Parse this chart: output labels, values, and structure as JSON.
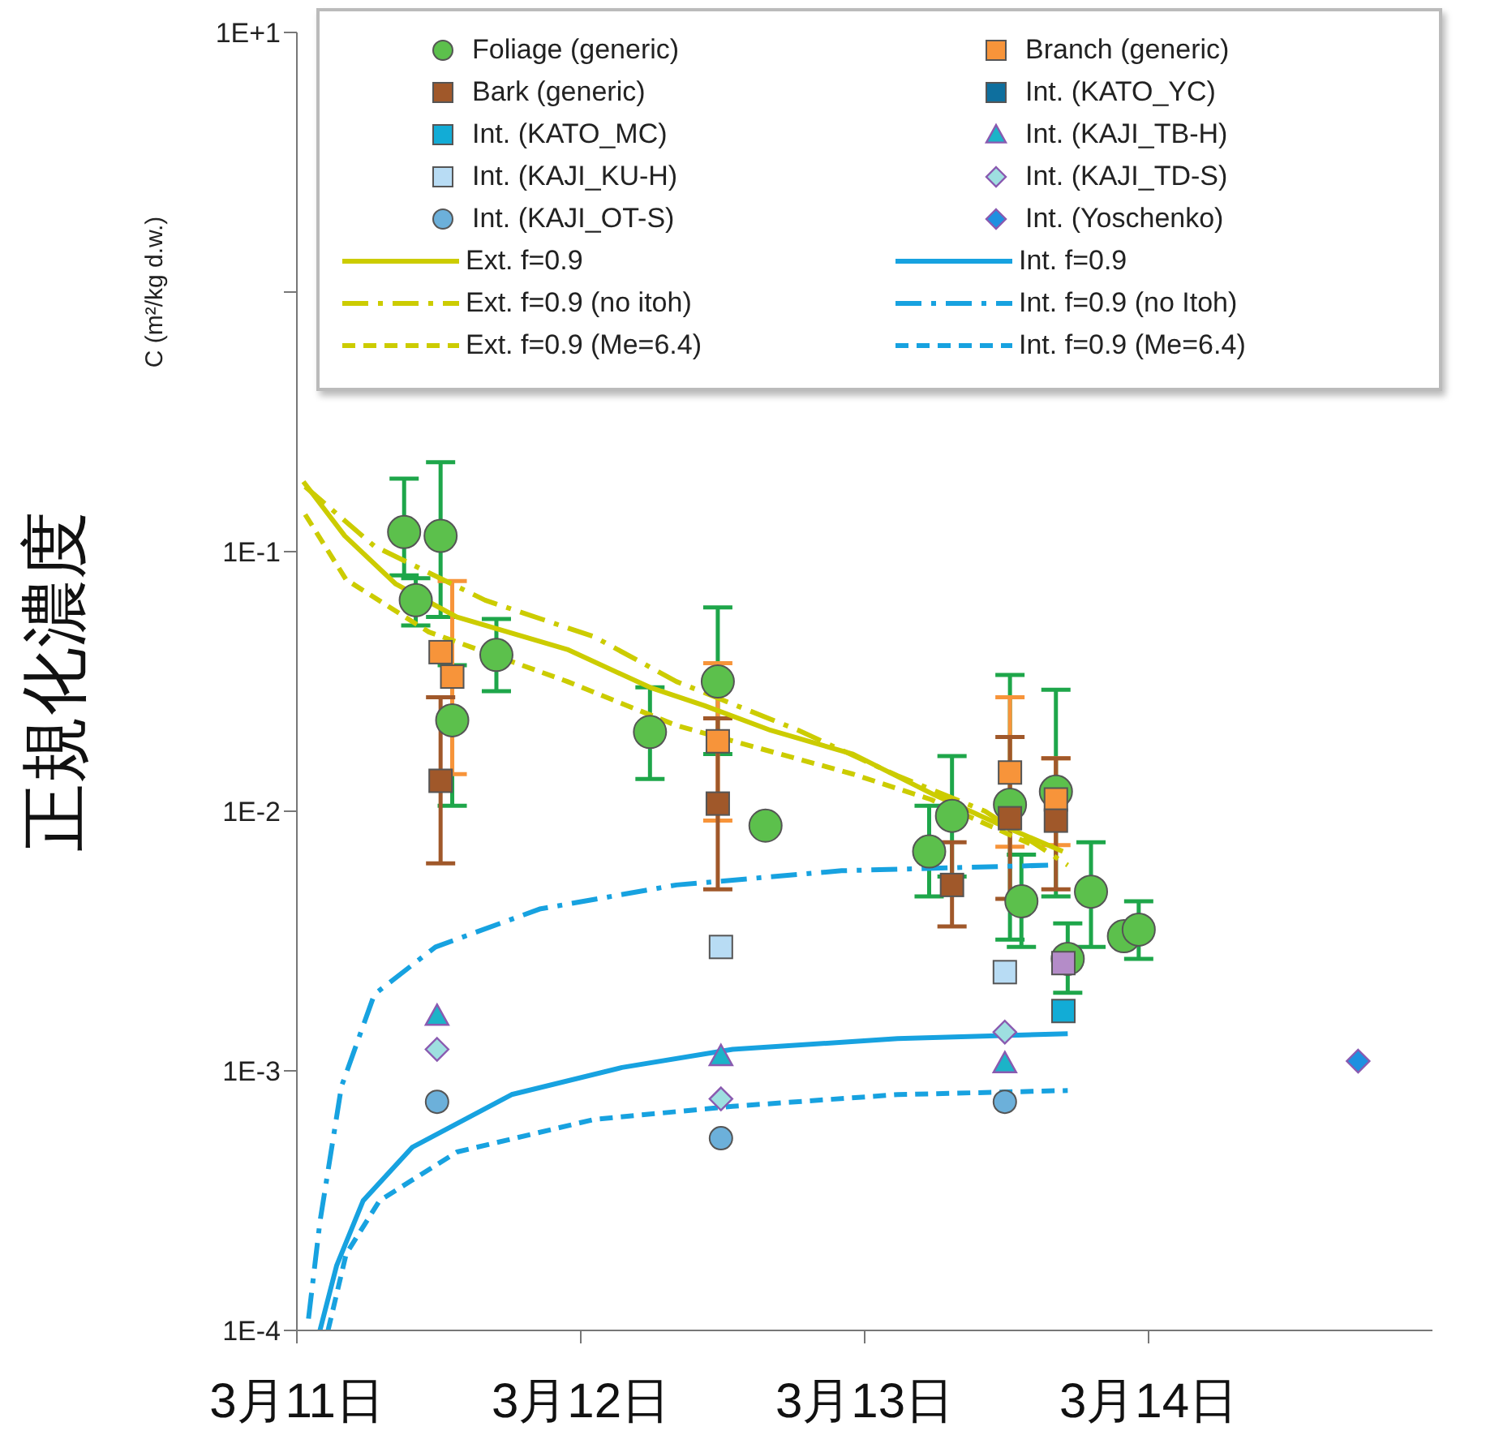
{
  "chart_data": {
    "type": "scatter",
    "ylabel": "正規化濃度",
    "annotations": [
      "C (m²/kg d.w.)"
    ],
    "xlim": [
      "--03-11",
      "--03-15"
    ],
    "xticks": [
      {
        "value": "--03-11",
        "label": "3月11日"
      },
      {
        "value": "--03-12",
        "label": "3月12日"
      },
      {
        "value": "--03-13",
        "label": "3月13日"
      },
      {
        "value": "--03-14",
        "label": "3月14日"
      }
    ],
    "ylim": [
      0.0001,
      10
    ],
    "yticks": [
      {
        "value": 0.0001,
        "label": "1E-4"
      },
      {
        "value": 0.001,
        "label": "1E-3"
      },
      {
        "value": 0.01,
        "label": "1E-2"
      },
      {
        "value": 0.1,
        "label": "1E-1"
      },
      {
        "value": 1,
        "label": null
      },
      {
        "value": 10,
        "label": "1E+1"
      }
    ],
    "log": "y",
    "legend": "top",
    "grid": false,
    "series": [
      {
        "name": "Foliage (generic)",
        "marker": "circle",
        "color": "#5cc04c",
        "x": [
          "--03-11T09:04",
          "--03-11T10:03",
          "--03-11T12:09",
          "--03-11T13:08",
          "--03-11T16:52",
          "--03-12T05:51",
          "--03-12T11:35",
          "--03-12T15:37",
          "--03-13T05:27",
          "--03-13T07:23",
          "--03-13T12:17",
          "--03-13T13:15",
          "--03-13T16:10",
          "--03-13T17:10",
          "--03-13T19:08",
          "--03-13T21:55",
          "--03-13T23:10"
        ],
        "values": [
          0.119,
          0.065,
          0.115,
          0.0224,
          0.04,
          0.0202,
          0.0316,
          0.0088,
          0.007,
          0.0096,
          0.0106,
          0.0045,
          0.0119,
          0.0027,
          0.0049,
          0.0033,
          0.0035
        ],
        "errors": [
          [
            0.081,
            0.191
          ],
          [
            0.052,
            0.079
          ],
          [
            0.056,
            0.221
          ],
          [
            0.0105,
            0.0365
          ],
          [
            0.029,
            0.055
          ],
          [
            0.0133,
            0.03
          ],
          [
            0.0166,
            0.061
          ],
          null,
          [
            0.0047,
            0.0105
          ],
          [
            0.0056,
            0.0163
          ],
          [
            0.0032,
            0.0335
          ],
          [
            0.003,
            0.0068
          ],
          [
            0.0047,
            0.0294
          ],
          [
            0.002,
            0.0037
          ],
          [
            0.003,
            0.0076
          ],
          null,
          [
            0.0027,
            0.0045
          ]
        ]
      },
      {
        "name": "Branch (generic)",
        "marker": "square",
        "color": "#f7943a",
        "x": [
          "--03-11T12:09",
          "--03-11T13:08",
          "--03-12T11:35",
          "--03-13T12:17",
          "--03-13T16:10"
        ],
        "values": [
          0.041,
          0.033,
          0.0186,
          0.0141,
          0.0111
        ],
        "errors": [
          null,
          [
            0.0139,
            0.077
          ],
          [
            0.0092,
            0.0372
          ],
          [
            0.0073,
            0.0275
          ],
          [
            0.0074,
            0.016
          ]
        ]
      },
      {
        "name": "Bark (generic)",
        "marker": "square",
        "color": "#a0582a",
        "x": [
          "--03-11T12:09",
          "--03-12T11:35",
          "--03-13T07:23",
          "--03-13T12:17",
          "--03-13T16:10"
        ],
        "values": [
          0.0131,
          0.0107,
          0.0052,
          0.0094,
          0.0092
        ],
        "errors": [
          [
            0.0063,
            0.0275
          ],
          [
            0.005,
            0.0228
          ],
          [
            0.0036,
            0.0076
          ],
          [
            0.0046,
            0.0193
          ],
          [
            0.005,
            0.016
          ]
        ]
      },
      {
        "name": "Int. (KATO_YC)",
        "marker": "square",
        "color": "#0e6f9e"
      },
      {
        "name": "Int.  (KATO_MC)",
        "marker": "square",
        "color": "#12acd6",
        "x": [
          "--03-13T16:48"
        ],
        "values": [
          0.0017
        ]
      },
      {
        "name": "Int. (KAJI_TB-H)",
        "marker": "triangle",
        "color": "#1cb3c8",
        "x": [
          "--03-11T11:51",
          "--03-12T11:51",
          "--03-13T11:51"
        ],
        "values": [
          0.00163,
          0.00114,
          0.00107
        ]
      },
      {
        "name": "Int. (KAJI_KU-H)",
        "marker": "square",
        "color": "#b8dcf4",
        "x": [
          "--03-12T11:51",
          "--03-13T11:51"
        ],
        "values": [
          0.003,
          0.0024
        ]
      },
      {
        "name": "Int. (KAJI_TD-S)",
        "marker": "diamond",
        "color": "#9edfe0",
        "x": [
          "--03-11T11:51",
          "--03-12T11:51",
          "--03-13T11:51"
        ],
        "values": [
          0.00121,
          0.00078,
          0.00141
        ]
      },
      {
        "name": "Int. (KAJI_OT-S)",
        "marker": "circle",
        "color": "#6cb0da",
        "x": [
          "--03-11T11:51",
          "--03-12T11:51",
          "--03-13T11:51"
        ],
        "values": [
          0.00076,
          0.00055,
          0.00076
        ]
      },
      {
        "name": "Int. (Yoschenko)",
        "marker": "diamond",
        "color": "#1e90e0",
        "x": [
          "--03-14T17:43"
        ],
        "values": [
          0.00109
        ]
      },
      {
        "name": "Ext. f=0.9",
        "type": "line",
        "line_style": "solid",
        "color": "#cccc00",
        "x": [
          "--03-11T00:33",
          "--03-11T04:03",
          "--03-11T08:22",
          "--03-11T13:32",
          "--03-11T22:52",
          "--03-12T05:51",
          "--03-12T10:28",
          "--03-12T16:03",
          "--03-12T23:01",
          "--03-13T06:00",
          "--03-13T11:10",
          "--03-13T16:45"
        ],
        "values": [
          0.186,
          0.115,
          0.075,
          0.056,
          0.042,
          0.03,
          0.0255,
          0.0205,
          0.0166,
          0.0115,
          0.009,
          0.007
        ]
      },
      {
        "name": "Int. f=0.9",
        "type": "line",
        "line_style": "solid",
        "color": "#17a2e0",
        "x": [
          "--03-11T01:57",
          "--03-11T03:22",
          "--03-11T05:36",
          "--03-11T09:46",
          "--03-11T18:09",
          "--03-12T03:29",
          "--03-12T12:50",
          "--03-13T02:47",
          "--03-13T17:10"
        ],
        "values": [
          0.0001,
          0.000178,
          0.000316,
          0.000508,
          0.00081,
          0.00103,
          0.00121,
          0.00133,
          0.00139
        ]
      },
      {
        "name": "Ext. f=0.9 (no itoh)",
        "type": "line",
        "line_style": "dashdot",
        "color": "#cccc00",
        "x": [
          "--03-11T00:42",
          "--03-11T06:33",
          "--03-11T15:55",
          "--03-12T01:08",
          "--03-12T08:05",
          "--03-12T18:24",
          "--03-13T02:47",
          "--03-13T10:11",
          "--03-13T17:10"
        ],
        "values": [
          0.178,
          0.105,
          0.065,
          0.047,
          0.0316,
          0.0205,
          0.0137,
          0.01,
          0.0062
        ]
      },
      {
        "name": "Int. f=0.9 (no Itoh)",
        "type": "line",
        "line_style": "dashdot",
        "color": "#17a2e0",
        "x": [
          "--03-11T00:59",
          "--03-11T01:57",
          "--03-11T03:46",
          "--03-11T06:33",
          "--03-11T11:43",
          "--03-11T20:31",
          "--03-12T08:05",
          "--03-12T22:03",
          "--03-13T15:46"
        ],
        "values": [
          0.000111,
          0.000262,
          0.00087,
          0.00197,
          0.003,
          0.0042,
          0.0052,
          0.0059,
          0.0062
        ]
      },
      {
        "name": "Ext. f=0.9 (Me=6.4)",
        "type": "line",
        "line_style": "dashed",
        "color": "#cccc00",
        "x": [
          "--03-11T00:42",
          "--03-11T04:10",
          "--03-11T11:10",
          "--03-11T22:52",
          "--03-12T08:05",
          "--03-12T23:01",
          "--03-13T05:36",
          "--03-13T13:57"
        ],
        "values": [
          0.139,
          0.078,
          0.049,
          0.0316,
          0.0214,
          0.0139,
          0.0111,
          0.0075
        ]
      },
      {
        "name": "Int. f=0.9 (Me=6.4)",
        "type": "line",
        "line_style": "dashed",
        "color": "#17a2e0",
        "x": [
          "--03-11T02:38",
          "--03-11T04:10",
          "--03-11T06:59",
          "--03-11T13:32",
          "--03-12T01:08",
          "--03-12T12:50",
          "--03-13T02:47",
          "--03-13T17:10"
        ],
        "values": [
          0.0001,
          0.000197,
          0.000316,
          0.000487,
          0.00065,
          0.00073,
          0.00081,
          0.00084
        ]
      },
      {
        "marker": "square",
        "color": "#b48cc8",
        "x": [
          "--03-13T16:48"
        ],
        "values": [
          0.0026
        ]
      }
    ]
  }
}
